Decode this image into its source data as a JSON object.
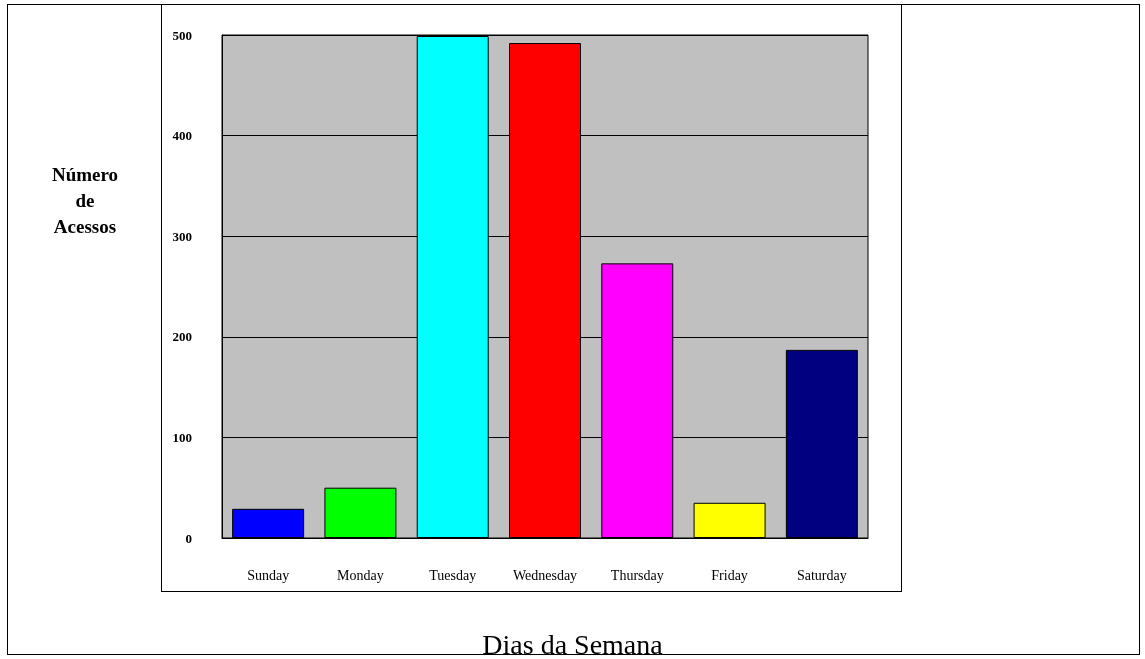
{
  "chart_data": {
    "type": "bar",
    "xlabel": "Dias da Semana",
    "ylabel": "Número de Acessos",
    "categories": [
      "Sunday",
      "Monday",
      "Tuesday",
      "Wednesday",
      "Thursday",
      "Friday",
      "Saturday"
    ],
    "values": [
      29,
      50,
      499,
      492,
      273,
      35,
      187
    ],
    "colors": [
      "#0000ff",
      "#00ff00",
      "#00ffff",
      "#ff0000",
      "#ff00ff",
      "#ffff00",
      "#000080"
    ],
    "ylim": [
      0,
      500
    ],
    "yticks": [
      0,
      100,
      200,
      300,
      400,
      500
    ],
    "grid": "y"
  }
}
